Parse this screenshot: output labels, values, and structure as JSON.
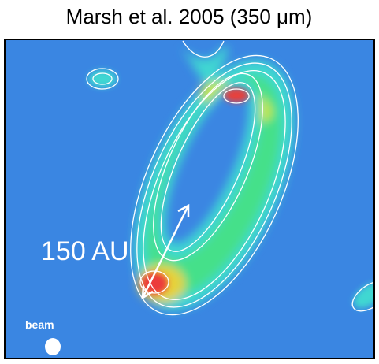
{
  "title": "Marsh et al. 2005 (350 μm)",
  "annotations": {
    "scale": "150 AU",
    "beam": "beam"
  }
}
